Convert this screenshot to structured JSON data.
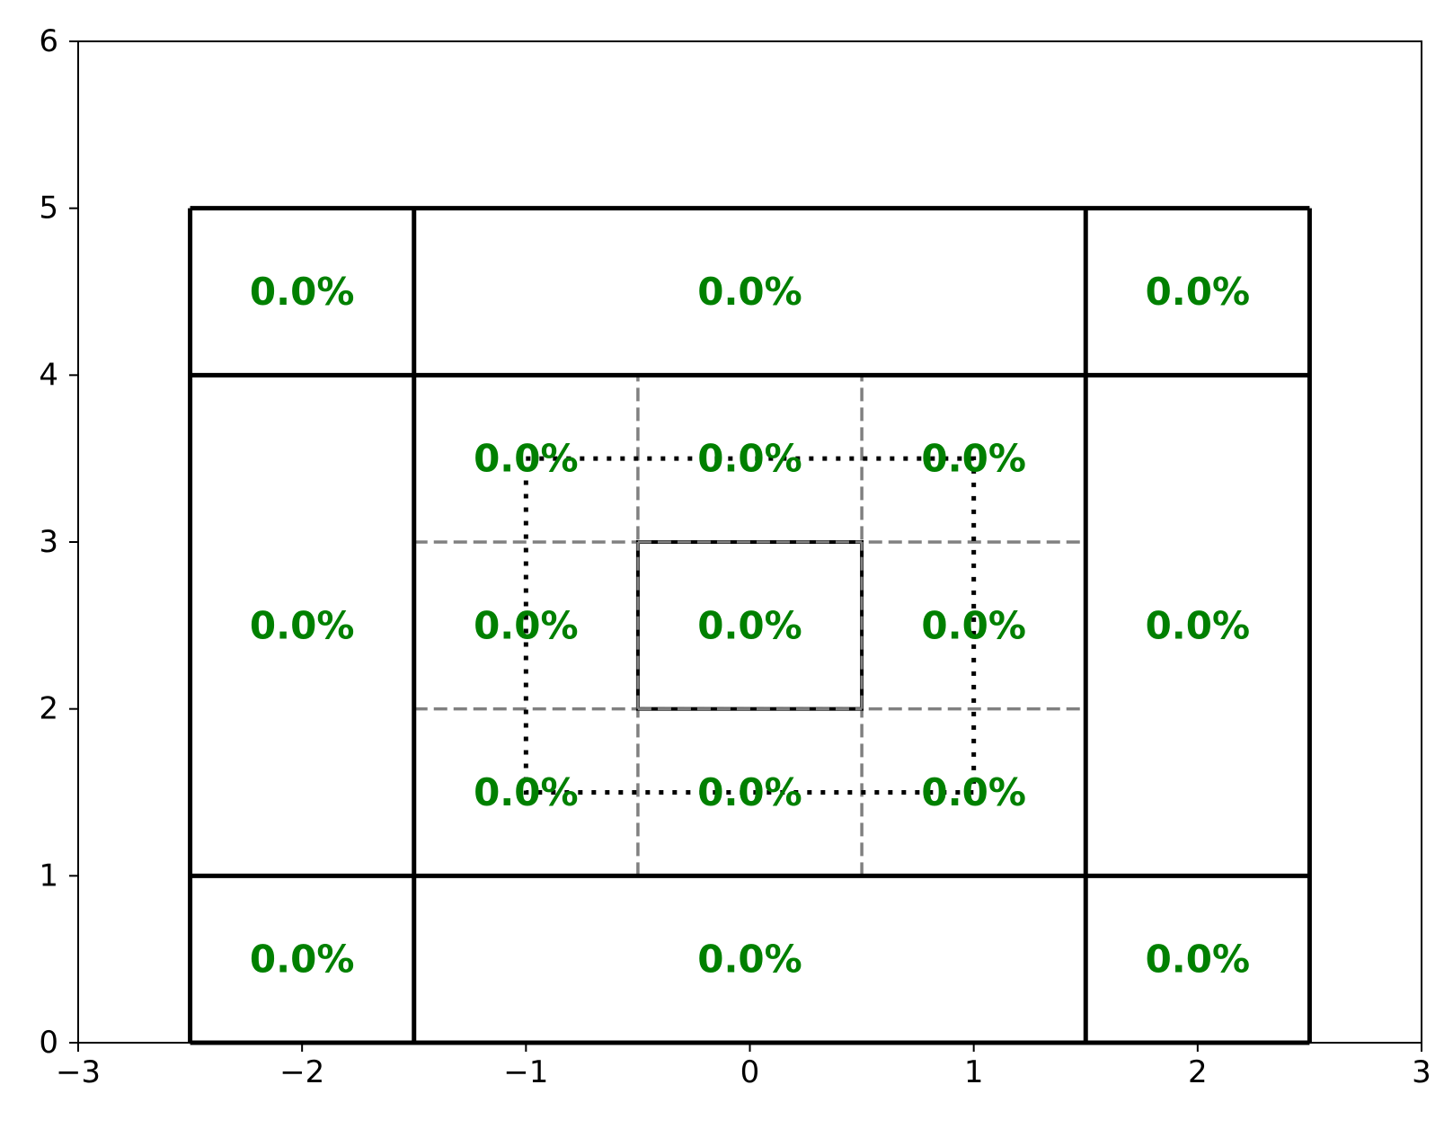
{
  "chart_data": {
    "type": "other",
    "xlim": [
      -3,
      3
    ],
    "ylim": [
      0,
      6
    ],
    "x_ticks": [
      -3,
      -2,
      -1,
      0,
      1,
      2,
      3
    ],
    "x_tick_labels": [
      "−3",
      "−2",
      "−1",
      "0",
      "1",
      "2",
      "3"
    ],
    "y_ticks": [
      0,
      1,
      2,
      3,
      4,
      5,
      6
    ],
    "y_tick_labels": [
      "0",
      "1",
      "2",
      "3",
      "4",
      "5",
      "6"
    ],
    "grid": false,
    "solid_lines_x": [
      -2.5,
      -1.5,
      1.5,
      2.5
    ],
    "solid_lines_y": [
      0,
      1,
      4,
      5
    ],
    "dashed_gray_lines_x": [
      -0.5,
      0.5
    ],
    "dashed_gray_lines_x_range": [
      1,
      4
    ],
    "dashed_gray_lines_y": [
      2,
      3
    ],
    "dashed_gray_lines_y_range": [
      -1.5,
      1.5
    ],
    "center_box": {
      "x0": -0.5,
      "x1": 0.5,
      "y0": 2,
      "y1": 3
    },
    "dotted_rectangle": {
      "x0": -1,
      "x1": 1,
      "y0": 1.5,
      "y1": 3.5
    },
    "cells": [
      {
        "x": -2,
        "y": 4.5,
        "label": "0.0%"
      },
      {
        "x": 0,
        "y": 4.5,
        "label": "0.0%"
      },
      {
        "x": 2,
        "y": 4.5,
        "label": "0.0%"
      },
      {
        "x": -1,
        "y": 3.5,
        "label": "0.0%"
      },
      {
        "x": 0,
        "y": 3.5,
        "label": "0.0%"
      },
      {
        "x": 1,
        "y": 3.5,
        "label": "0.0%"
      },
      {
        "x": -2,
        "y": 2.5,
        "label": "0.0%"
      },
      {
        "x": -1,
        "y": 2.5,
        "label": "0.0%"
      },
      {
        "x": 0,
        "y": 2.5,
        "label": "0.0%"
      },
      {
        "x": 1,
        "y": 2.5,
        "label": "0.0%"
      },
      {
        "x": 2,
        "y": 2.5,
        "label": "0.0%"
      },
      {
        "x": -1,
        "y": 1.5,
        "label": "0.0%"
      },
      {
        "x": 0,
        "y": 1.5,
        "label": "0.0%"
      },
      {
        "x": 1,
        "y": 1.5,
        "label": "0.0%"
      },
      {
        "x": -2,
        "y": 0.5,
        "label": "0.0%"
      },
      {
        "x": 0,
        "y": 0.5,
        "label": "0.0%"
      },
      {
        "x": 2,
        "y": 0.5,
        "label": "0.0%"
      }
    ],
    "colors": {
      "label": "#008000",
      "solid": "#000000",
      "dashed": "#808080",
      "dotted": "#000000"
    }
  }
}
